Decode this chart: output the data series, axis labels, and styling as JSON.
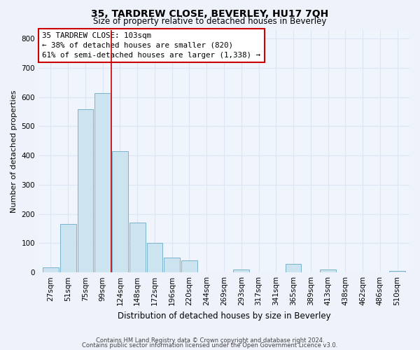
{
  "title": "35, TARDREW CLOSE, BEVERLEY, HU17 7QH",
  "subtitle": "Size of property relative to detached houses in Beverley",
  "xlabel": "Distribution of detached houses by size in Beverley",
  "ylabel": "Number of detached properties",
  "bar_labels": [
    "27sqm",
    "51sqm",
    "75sqm",
    "99sqm",
    "124sqm",
    "148sqm",
    "172sqm",
    "196sqm",
    "220sqm",
    "244sqm",
    "269sqm",
    "293sqm",
    "317sqm",
    "341sqm",
    "365sqm",
    "389sqm",
    "413sqm",
    "438sqm",
    "462sqm",
    "486sqm",
    "510sqm"
  ],
  "bar_values": [
    18,
    165,
    558,
    614,
    415,
    170,
    100,
    50,
    40,
    0,
    0,
    10,
    0,
    0,
    30,
    0,
    10,
    0,
    0,
    0,
    5
  ],
  "bar_color": "#cce4f0",
  "bar_edge_color": "#7ab3cc",
  "vline_x_idx": 3.5,
  "vline_color": "#cc0000",
  "annotation_title": "35 TARDREW CLOSE: 103sqm",
  "annotation_line1": "← 38% of detached houses are smaller (820)",
  "annotation_line2": "61% of semi-detached houses are larger (1,338) →",
  "annotation_box_color": "white",
  "annotation_box_edge": "#cc0000",
  "ylim": [
    0,
    830
  ],
  "yticks": [
    0,
    100,
    200,
    300,
    400,
    500,
    600,
    700,
    800
  ],
  "footer_line1": "Contains HM Land Registry data © Crown copyright and database right 2024.",
  "footer_line2": "Contains public sector information licensed under the Open Government Licence v3.0.",
  "background_color": "#eef2fb",
  "plot_bg_color": "#f0f4fc",
  "grid_color": "#dde6f5",
  "title_fontsize": 10,
  "subtitle_fontsize": 8.5,
  "xlabel_fontsize": 8.5,
  "ylabel_fontsize": 8,
  "tick_fontsize": 7.5,
  "footer_fontsize": 6.0
}
